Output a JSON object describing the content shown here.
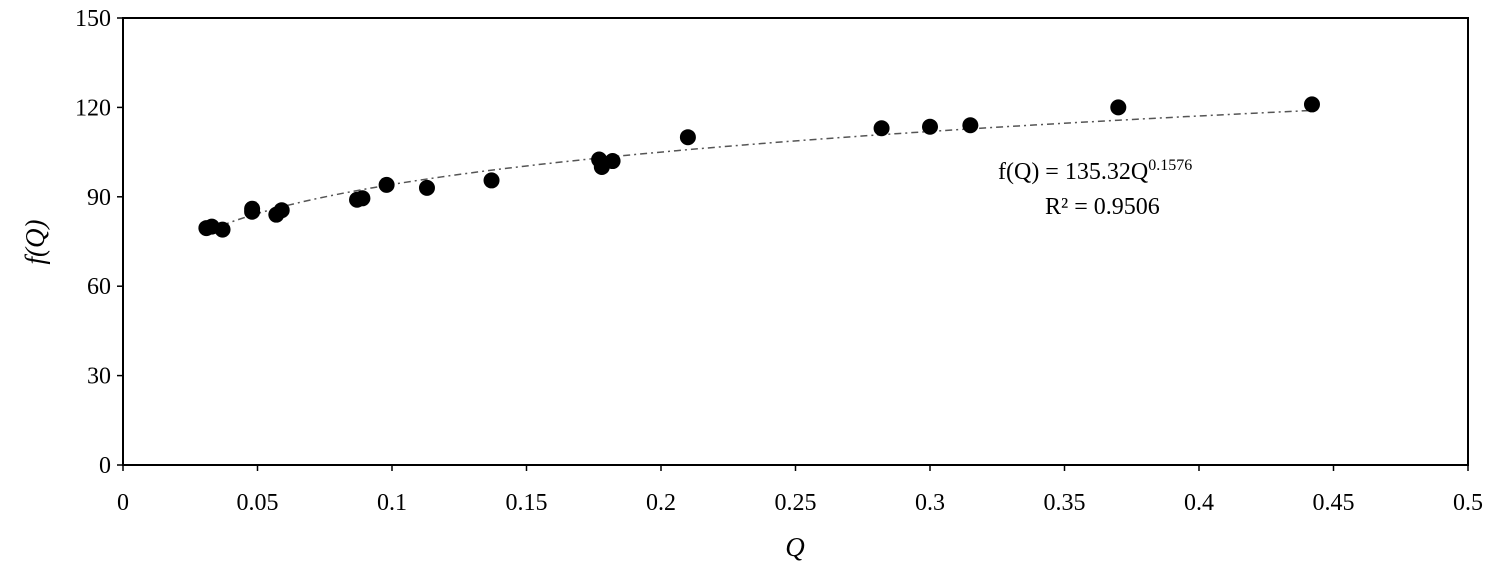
{
  "chart_data": {
    "type": "scatter",
    "title": "",
    "xlabel": "Q",
    "ylabel": "f(Q)",
    "xlim": [
      0,
      0.5
    ],
    "ylim": [
      0,
      150
    ],
    "x_ticks": [
      0,
      0.05,
      0.1,
      0.15,
      0.2,
      0.25,
      0.3,
      0.35,
      0.4,
      0.45,
      0.5
    ],
    "x_tick_labels": [
      "0",
      "0.05",
      "0.1",
      "0.15",
      "0.2",
      "0.25",
      "0.3",
      "0.35",
      "0.4",
      "0.45",
      "0.5"
    ],
    "y_ticks": [
      0,
      30,
      60,
      90,
      120,
      150
    ],
    "y_tick_labels": [
      "0",
      "30",
      "60",
      "90",
      "120",
      "150"
    ],
    "grid": false,
    "legend": "none",
    "marker_color": "#000000",
    "trendline_color": "#555555",
    "series": [
      {
        "x": [
          0.031,
          0.033,
          0.037,
          0.048,
          0.048,
          0.057,
          0.059,
          0.087,
          0.089,
          0.098,
          0.113,
          0.137,
          0.177,
          0.178,
          0.182,
          0.21,
          0.282,
          0.3,
          0.315,
          0.37,
          0.442
        ],
        "y": [
          79.5,
          80,
          79,
          86,
          85,
          84,
          85.5,
          89,
          89.5,
          94,
          93,
          95.5,
          102.5,
          100,
          102,
          110,
          113,
          113.5,
          114,
          120,
          121
        ]
      }
    ],
    "trendline": {
      "type": "power",
      "coefficient": 135.32,
      "exponent": 0.1576,
      "x_range": [
        0.031,
        0.442
      ]
    },
    "annotation": {
      "equation_prefix": "f(Q) = 135.32Q",
      "equation_exponent": "0.1576",
      "r_squared": "R² = 0.9506"
    }
  }
}
